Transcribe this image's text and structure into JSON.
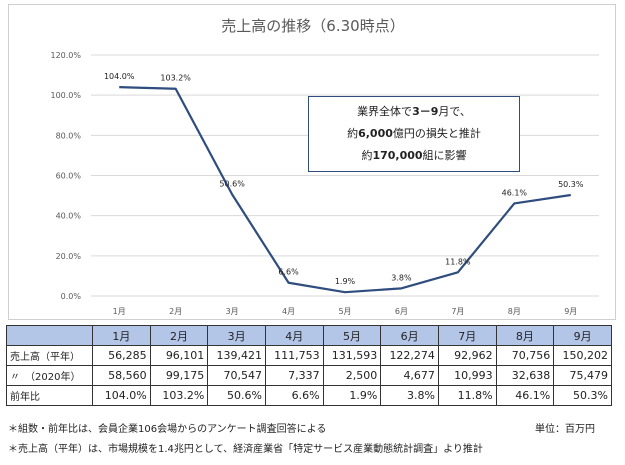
{
  "chart_data": {
    "type": "line",
    "title": "売上高の推移（6.30時点）",
    "categories": [
      "1月",
      "2月",
      "3月",
      "4月",
      "5月",
      "6月",
      "7月",
      "8月",
      "9月"
    ],
    "values": [
      104.0,
      103.2,
      50.6,
      6.6,
      1.9,
      3.8,
      11.8,
      46.1,
      50.3
    ],
    "data_labels": [
      "104.0%",
      "103.2%",
      "50.6%",
      "6.6%",
      "1.9%",
      "3.8%",
      "11.8%",
      "46.1%",
      "50.3%"
    ],
    "ylim": [
      0,
      120
    ],
    "yticks": [
      "0.0%",
      "20.0%",
      "40.0%",
      "60.0%",
      "80.0%",
      "100.0%",
      "120.0%"
    ],
    "grid": true,
    "line_color": "#2f4d7e"
  },
  "annotation": {
    "line1_prefix": "業界全体で",
    "line1_bold": "3－9",
    "line1_suffix": "月で、",
    "line2_prefix": "約",
    "line2_bold": "6,000",
    "line2_suffix": "億円の損失と推計",
    "line3_prefix": "約",
    "line3_bold": "170,000",
    "line3_suffix": "組に影響"
  },
  "table": {
    "headers": [
      "1月",
      "2月",
      "3月",
      "4月",
      "5月",
      "6月",
      "7月",
      "8月",
      "9月"
    ],
    "rows": [
      {
        "label": "売上高（平年）",
        "values": [
          "56,285",
          "96,101",
          "139,421",
          "111,753",
          "131,593",
          "122,274",
          "92,962",
          "70,756",
          "150,202"
        ]
      },
      {
        "label": "〃　（2020年）",
        "values": [
          "58,560",
          "99,175",
          "70,547",
          "7,337",
          "2,500",
          "4,677",
          "10,993",
          "32,638",
          "75,479"
        ]
      },
      {
        "label": "前年比",
        "values": [
          "104.0%",
          "103.2%",
          "50.6%",
          "6.6%",
          "1.9%",
          "3.8%",
          "11.8%",
          "46.1%",
          "50.3%"
        ]
      }
    ]
  },
  "footnotes": {
    "note1": "＊組数・前年比は、会員企業106会場からのアンケート調査回答による",
    "note2": "＊売上高（平年）は、市場規模を1.4兆円として、経済産業省「特定サービス産業動態統計調査」より推計",
    "unit": "単位：百万円"
  }
}
